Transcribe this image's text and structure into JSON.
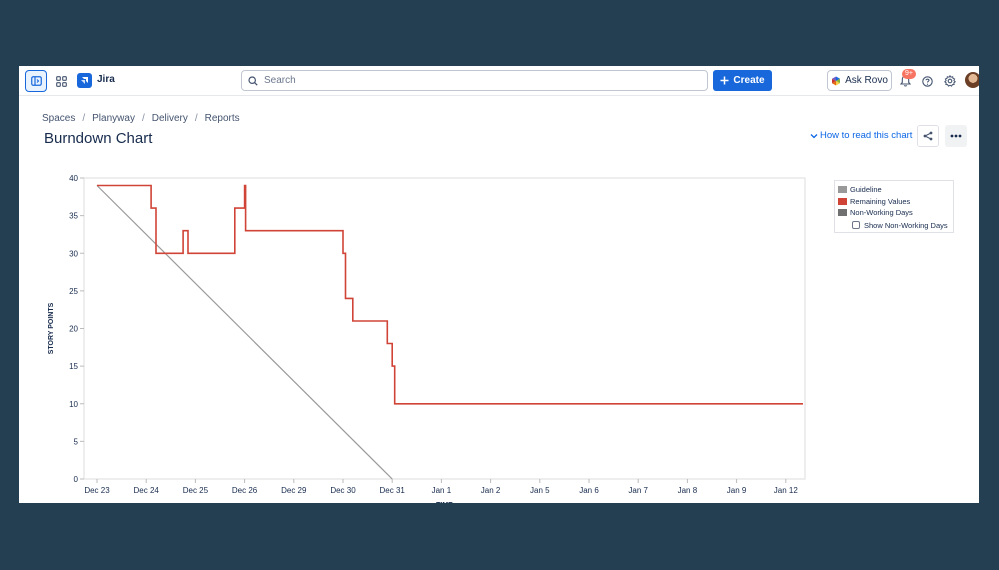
{
  "nav": {
    "brand": "Jira",
    "search_placeholder": "Search",
    "create_label": "Create",
    "ask_rovo_label": "Ask Rovo",
    "notification_badge": "9+"
  },
  "breadcrumb": [
    "Spaces",
    "Planyway",
    "Delivery",
    "Reports"
  ],
  "page": {
    "title": "Burndown Chart",
    "how_to_read_link": "How to read this chart"
  },
  "legend": {
    "items": [
      {
        "label": "Guideline",
        "color": "#999999"
      },
      {
        "label": "Remaining Values",
        "color": "#d04437"
      },
      {
        "label": "Non-Working Days",
        "color": "#707070"
      }
    ],
    "show_non_working_days_label": "Show Non-Working Days",
    "show_non_working_days_checked": false
  },
  "chart_data": {
    "type": "line",
    "xlabel": "TIME",
    "ylabel": "STORY POINTS",
    "ylim": [
      0,
      40
    ],
    "yticks": [
      0,
      5,
      10,
      15,
      20,
      25,
      30,
      35,
      40
    ],
    "categories": [
      "Dec 23",
      "Dec 24",
      "Dec 25",
      "Dec 26",
      "Dec 29",
      "Dec 30",
      "Dec 31",
      "Jan 1",
      "Jan 2",
      "Jan 5",
      "Jan 6",
      "Jan 7",
      "Jan 8",
      "Jan 9",
      "Jan 12"
    ],
    "grid": false,
    "legend_position": "right",
    "series": [
      {
        "name": "Guideline",
        "color": "#999999",
        "step": false,
        "points": [
          [
            0,
            39
          ],
          [
            6.0,
            0
          ]
        ]
      },
      {
        "name": "Remaining Values",
        "color": "#d04437",
        "step": true,
        "points": [
          [
            0,
            39
          ],
          [
            1.1,
            39
          ],
          [
            1.1,
            36
          ],
          [
            1.2,
            36
          ],
          [
            1.2,
            30
          ],
          [
            1.75,
            30
          ],
          [
            1.75,
            33
          ],
          [
            1.85,
            33
          ],
          [
            1.85,
            30
          ],
          [
            2.8,
            30
          ],
          [
            2.8,
            36
          ],
          [
            3.0,
            36
          ],
          [
            3.0,
            39
          ],
          [
            3.02,
            39
          ],
          [
            3.02,
            33
          ],
          [
            5.0,
            33
          ],
          [
            5.0,
            30
          ],
          [
            5.05,
            30
          ],
          [
            5.05,
            24
          ],
          [
            5.2,
            24
          ],
          [
            5.2,
            21
          ],
          [
            5.9,
            21
          ],
          [
            5.9,
            18
          ],
          [
            6.0,
            18
          ],
          [
            6.0,
            15
          ],
          [
            6.05,
            15
          ],
          [
            6.05,
            10
          ],
          [
            14.35,
            10
          ]
        ]
      }
    ]
  }
}
